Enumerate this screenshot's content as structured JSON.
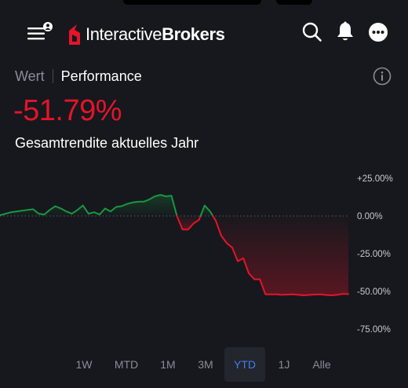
{
  "header": {
    "logo_text_light": "Interactive",
    "logo_text_bold": "Brokers",
    "icons": [
      "menu-icon",
      "user-icon",
      "search-icon",
      "bell-icon",
      "more-icon"
    ]
  },
  "tabs": {
    "wert": "Wert",
    "performance": "Performance"
  },
  "summary": {
    "value": "-51.79%",
    "label": "Gesamtrendite aktuelles Jahr"
  },
  "chart_data": {
    "type": "line",
    "title": "",
    "xlabel": "",
    "ylabel": "",
    "ylim": [
      -75,
      25
    ],
    "y_ticks": [
      "+25.00%",
      "0.00%",
      "-25.00%",
      "-50.00%",
      "-75.00%"
    ],
    "baseline": 0,
    "positive_color": "#1a9641",
    "negative_color": "#e5142a",
    "x": [
      0,
      1,
      2,
      3,
      4,
      5,
      6,
      7,
      8,
      9,
      10,
      11,
      12,
      13,
      14,
      15,
      16,
      17,
      18,
      19,
      20,
      21,
      22,
      23,
      24,
      25,
      26,
      27,
      28,
      29,
      30,
      31,
      32,
      33,
      34,
      35,
      36,
      37,
      38,
      39,
      40,
      41,
      42,
      43,
      44,
      45,
      46,
      47,
      48,
      49,
      50,
      51,
      52,
      53,
      54,
      55,
      56,
      57,
      58,
      59,
      60,
      61,
      62,
      63
    ],
    "values": [
      0.5,
      1.5,
      2.5,
      3,
      3.5,
      4,
      4.5,
      1.5,
      1,
      4,
      6.5,
      5,
      3,
      1.5,
      4,
      7,
      1.5,
      2.5,
      1,
      5,
      3,
      6,
      6.5,
      8,
      9,
      9.5,
      9.5,
      11,
      13,
      14,
      13,
      13.5,
      0,
      -9,
      -9,
      -5,
      -2.5,
      7,
      3,
      -3,
      -13,
      -18,
      -21,
      -30,
      -28,
      -38,
      -42,
      -42,
      -52,
      -52,
      -52,
      -52.3,
      -52.1,
      -52,
      -52.3,
      -52.6,
      -52.3,
      -52.1,
      -52,
      -52.4,
      -52.6,
      -52.3,
      -51.6,
      -51.8
    ],
    "grid": "dotted zero line",
    "range_selected": "YTD"
  },
  "range_selector": {
    "options": [
      "1W",
      "MTD",
      "1M",
      "3M",
      "YTD",
      "1J",
      "Alle"
    ],
    "selected": "YTD"
  }
}
